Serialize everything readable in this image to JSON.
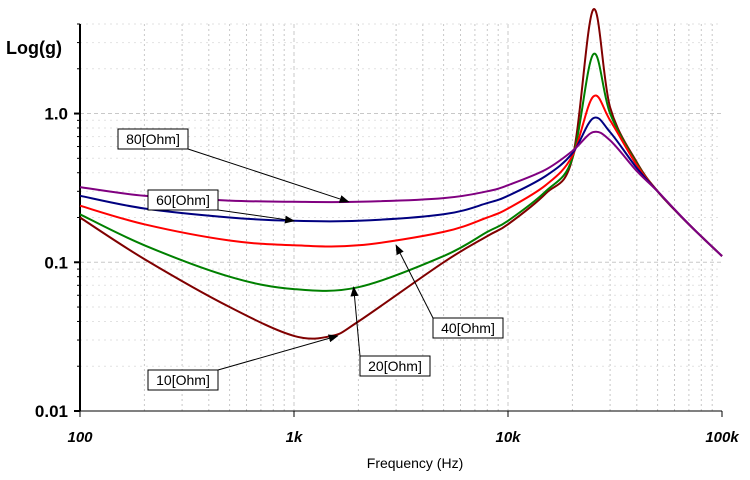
{
  "chart_data": {
    "type": "line",
    "title": "",
    "xlabel": "Frequency (Hz)",
    "ylabel": "Log(g)",
    "x_scale": "log",
    "y_scale": "log",
    "xlim": [
      100,
      100000
    ],
    "ylim": [
      0.01,
      4
    ],
    "grid": true,
    "xticks": [
      {
        "value": 100,
        "label": "100"
      },
      {
        "value": 1000,
        "label": "1k"
      },
      {
        "value": 10000,
        "label": "10k"
      },
      {
        "value": 100000,
        "label": "100k"
      }
    ],
    "yticks": [
      {
        "value": 0.01,
        "label": "0.01"
      },
      {
        "value": 0.1,
        "label": "0.1"
      },
      {
        "value": 1.0,
        "label": "1.0"
      }
    ],
    "series": [
      {
        "name": "80[Ohm]",
        "color": "#800080",
        "points": [
          [
            100,
            0.32
          ],
          [
            200,
            0.28
          ],
          [
            500,
            0.26
          ],
          [
            1000,
            0.255
          ],
          [
            2000,
            0.255
          ],
          [
            5000,
            0.27
          ],
          [
            8000,
            0.3
          ],
          [
            10000,
            0.33
          ],
          [
            15000,
            0.42
          ],
          [
            20000,
            0.56
          ],
          [
            25000,
            0.75
          ],
          [
            30000,
            0.66
          ],
          [
            40000,
            0.41
          ],
          [
            50000,
            0.3
          ],
          [
            70000,
            0.18
          ],
          [
            100000,
            0.11
          ]
        ],
        "label_anchor": [
          1800,
          0.255
        ]
      },
      {
        "name": "60[Ohm]",
        "color": "#000080",
        "points": [
          [
            100,
            0.28
          ],
          [
            200,
            0.23
          ],
          [
            500,
            0.2
          ],
          [
            1000,
            0.19
          ],
          [
            2000,
            0.19
          ],
          [
            5000,
            0.21
          ],
          [
            8000,
            0.25
          ],
          [
            10000,
            0.28
          ],
          [
            15000,
            0.38
          ],
          [
            20000,
            0.54
          ],
          [
            25000,
            0.93
          ],
          [
            30000,
            0.75
          ],
          [
            40000,
            0.43
          ],
          [
            50000,
            0.3
          ],
          [
            70000,
            0.18
          ],
          [
            100000,
            0.11
          ]
        ],
        "label_anchor": [
          1000,
          0.19
        ]
      },
      {
        "name": "40[Ohm]",
        "color": "#ff0000",
        "points": [
          [
            100,
            0.24
          ],
          [
            200,
            0.18
          ],
          [
            500,
            0.14
          ],
          [
            1000,
            0.13
          ],
          [
            2000,
            0.13
          ],
          [
            5000,
            0.16
          ],
          [
            8000,
            0.2
          ],
          [
            10000,
            0.23
          ],
          [
            15000,
            0.33
          ],
          [
            20000,
            0.52
          ],
          [
            25000,
            1.3
          ],
          [
            30000,
            0.9
          ],
          [
            40000,
            0.45
          ],
          [
            50000,
            0.3
          ],
          [
            70000,
            0.18
          ],
          [
            100000,
            0.11
          ]
        ],
        "label_anchor": [
          3000,
          0.13
        ]
      },
      {
        "name": "20[Ohm]",
        "color": "#008000",
        "points": [
          [
            100,
            0.21
          ],
          [
            200,
            0.13
          ],
          [
            500,
            0.08
          ],
          [
            1000,
            0.066
          ],
          [
            2000,
            0.068
          ],
          [
            5000,
            0.11
          ],
          [
            8000,
            0.16
          ],
          [
            10000,
            0.19
          ],
          [
            15000,
            0.3
          ],
          [
            20000,
            0.5
          ],
          [
            25000,
            2.5
          ],
          [
            30000,
            1.0
          ],
          [
            40000,
            0.46
          ],
          [
            50000,
            0.3
          ],
          [
            70000,
            0.18
          ],
          [
            100000,
            0.11
          ]
        ],
        "label_anchor": [
          1900,
          0.068
        ]
      },
      {
        "name": "10[Ohm]",
        "color": "#800000",
        "points": [
          [
            100,
            0.2
          ],
          [
            200,
            0.105
          ],
          [
            500,
            0.05
          ],
          [
            1000,
            0.032
          ],
          [
            1500,
            0.032
          ],
          [
            2000,
            0.04
          ],
          [
            5000,
            0.1
          ],
          [
            8000,
            0.15
          ],
          [
            10000,
            0.18
          ],
          [
            15000,
            0.29
          ],
          [
            20000,
            0.5
          ],
          [
            25000,
            5.0
          ],
          [
            30000,
            1.1
          ],
          [
            40000,
            0.47
          ],
          [
            50000,
            0.3
          ],
          [
            70000,
            0.18
          ],
          [
            100000,
            0.11
          ]
        ],
        "label_anchor": [
          1600,
          0.032
        ]
      }
    ]
  }
}
